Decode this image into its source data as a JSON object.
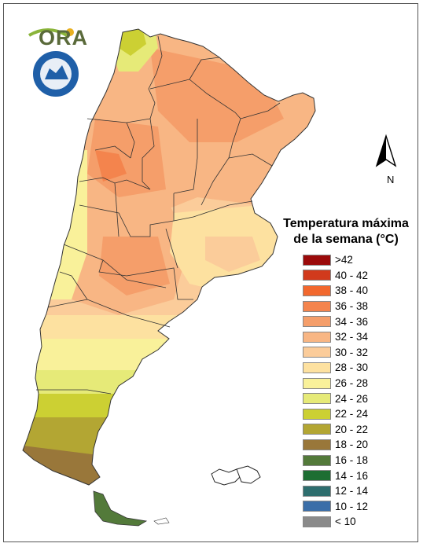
{
  "logo": {
    "text": "ORA",
    "seal_icon": "smn-seal-icon"
  },
  "legend": {
    "title_line1": "Temperatura máxima",
    "title_line2": "de la semana (°C)",
    "items": [
      {
        "label": ">42",
        "color": "#9b0a0a"
      },
      {
        "label": "40 - 42",
        "color": "#d13a1c"
      },
      {
        "label": "38 - 40",
        "color": "#f2682e"
      },
      {
        "label": "36 - 38",
        "color": "#f4844d"
      },
      {
        "label": "34 - 36",
        "color": "#f59e6a"
      },
      {
        "label": "32 - 34",
        "color": "#f8b684"
      },
      {
        "label": "30 - 32",
        "color": "#fbcc9a"
      },
      {
        "label": "28 - 30",
        "color": "#fde1a0"
      },
      {
        "label": "26 - 28",
        "color": "#f9f19a"
      },
      {
        "label": "24 - 26",
        "color": "#e6ea78"
      },
      {
        "label": "22 - 24",
        "color": "#ccd033"
      },
      {
        "label": "20 - 22",
        "color": "#b3a633"
      },
      {
        "label": "18 - 20",
        "color": "#99773a"
      },
      {
        "label": "16 - 18",
        "color": "#537a3a"
      },
      {
        "label": "14 - 16",
        "color": "#1d6e32"
      },
      {
        "label": "12 - 14",
        "color": "#2e6e6e"
      },
      {
        "label": "10 - 12",
        "color": "#3b6ea8"
      },
      {
        "label": "< 10",
        "color": "#8a8a8a"
      }
    ]
  },
  "north_arrow": {
    "label": "N"
  }
}
